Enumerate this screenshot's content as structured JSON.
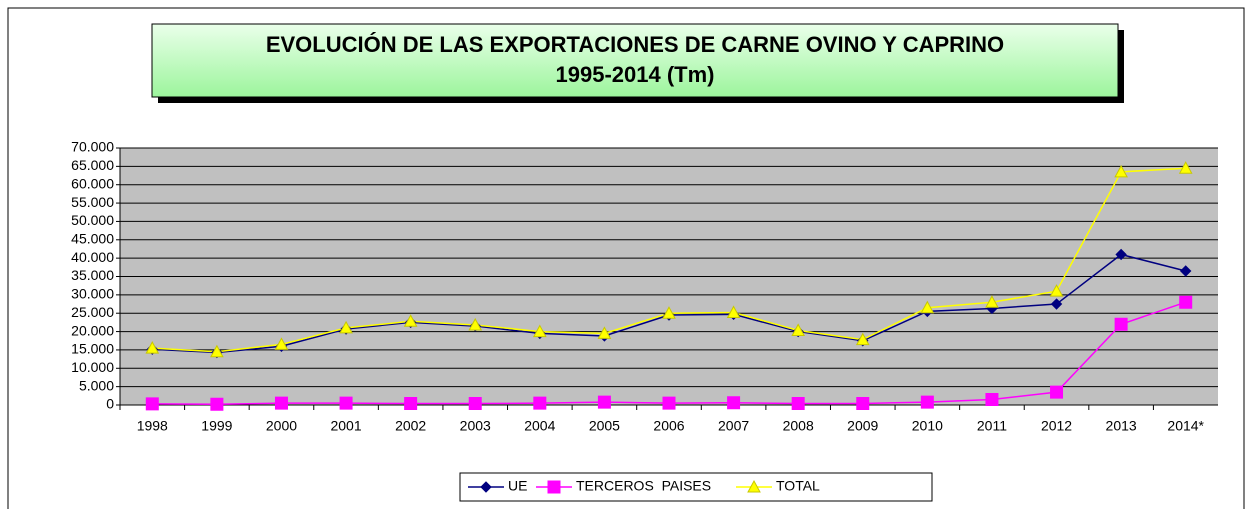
{
  "chart_data": {
    "type": "line",
    "title": [
      "EVOLUCIÓN DE LAS EXPORTACIONES DE CARNE OVINO Y CAPRINO",
      "1995-2014 (Tm)"
    ],
    "categories": [
      "1998",
      "1999",
      "2000",
      "2001",
      "2002",
      "2003",
      "2004",
      "2005",
      "2006",
      "2007",
      "2008",
      "2009",
      "2010",
      "2011",
      "2012",
      "2013",
      "2014*"
    ],
    "series": [
      {
        "name": "UE",
        "color": "#000080",
        "marker": "diamond",
        "values": [
          15200,
          14300,
          16000,
          20700,
          22500,
          21500,
          19500,
          18800,
          24500,
          24700,
          20000,
          17500,
          25500,
          26300,
          27500,
          41000,
          36500
        ]
      },
      {
        "name": "TERCEROS  PAISES",
        "color": "#ff00ff",
        "marker": "square",
        "values": [
          300,
          200,
          500,
          500,
          400,
          400,
          500,
          800,
          500,
          600,
          400,
          400,
          800,
          1500,
          3500,
          22000,
          28000
        ]
      },
      {
        "name": "TOTAL",
        "color": "#ffff00",
        "marker": "triangle",
        "values": [
          15500,
          14500,
          16500,
          21000,
          22800,
          21800,
          20000,
          19500,
          25000,
          25200,
          20300,
          17800,
          26500,
          28000,
          31000,
          63500,
          64500
        ]
      }
    ],
    "ylim": [
      0,
      70000
    ],
    "yticks": [
      0,
      {
        "value": 5000,
        "label": "5.000"
      },
      {
        "value": 10000,
        "label": "10.000"
      },
      {
        "value": 15000,
        "label": "15.000"
      },
      {
        "value": 20000,
        "label": "20.000"
      },
      {
        "value": 25000,
        "label": "25.000"
      },
      {
        "value": 30000,
        "label": "30.000"
      },
      {
        "value": 35000,
        "label": "35.000"
      },
      {
        "value": 40000,
        "label": "40.000"
      },
      {
        "value": 45000,
        "label": "45.000"
      },
      {
        "value": 50000,
        "label": "50.000"
      },
      {
        "value": 55000,
        "label": "55.000"
      },
      {
        "value": 60000,
        "label": "60.000"
      },
      {
        "value": 65000,
        "label": "65.000"
      },
      {
        "value": 70000,
        "label": "70.000"
      }
    ],
    "grid": true,
    "legend": "bottom"
  }
}
